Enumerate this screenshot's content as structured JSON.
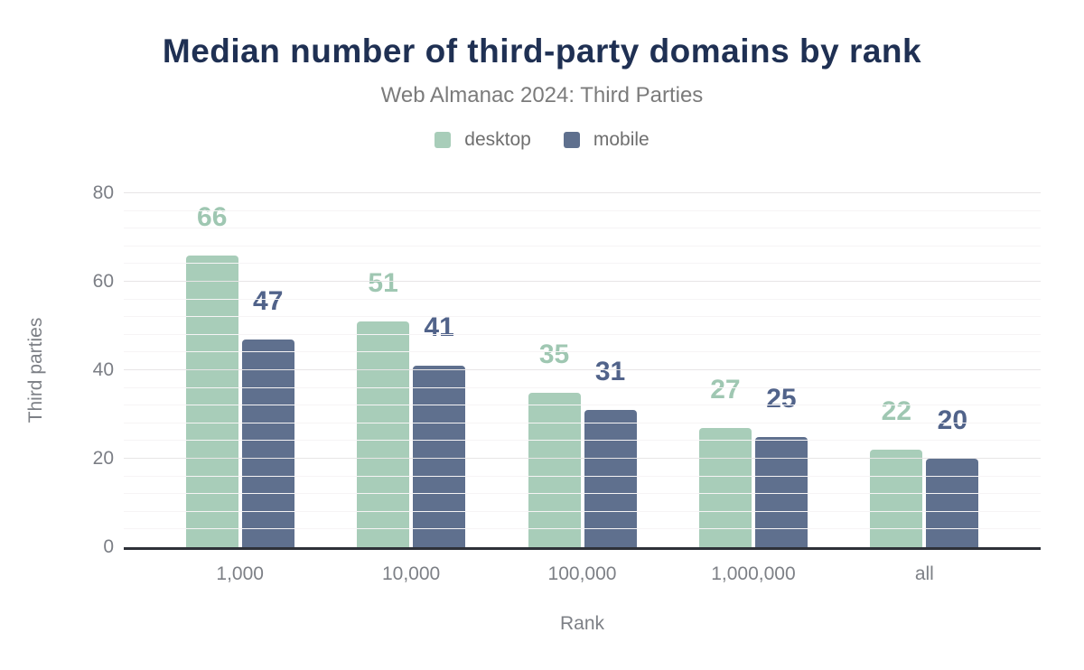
{
  "header": {
    "title": "Median number of third-party domains by rank",
    "subtitle": "Web Almanac 2024: Third Parties"
  },
  "chart_data": {
    "type": "bar",
    "title": "Median number of third-party domains by rank",
    "subtitle": "Web Almanac 2024: Third Parties",
    "categories": [
      "1,000",
      "10,000",
      "100,000",
      "1,000,000",
      "all"
    ],
    "series": [
      {
        "name": "desktop",
        "color": "#a8cdb9",
        "label_color": "#9fc7b2",
        "values": [
          66,
          51,
          35,
          27,
          22
        ]
      },
      {
        "name": "mobile",
        "color": "#5f708e",
        "label_color": "#51638a",
        "values": [
          47,
          41,
          31,
          25,
          20
        ]
      }
    ],
    "xlabel": "Rank",
    "ylabel": "Third parties",
    "ylim": [
      0,
      80
    ],
    "yticks": [
      0,
      20,
      40,
      60,
      80
    ],
    "minor_grid_step": 4,
    "grid": true,
    "legend_position": "top",
    "colors": {
      "title": "#1f3053",
      "subtitle": "#7b7b7b",
      "axis_text": "#7d8086",
      "major_grid": "#e7e5e6",
      "minor_grid": "#f6f4f5",
      "axis_line": "#2e3138",
      "background": "#ffffff"
    }
  }
}
